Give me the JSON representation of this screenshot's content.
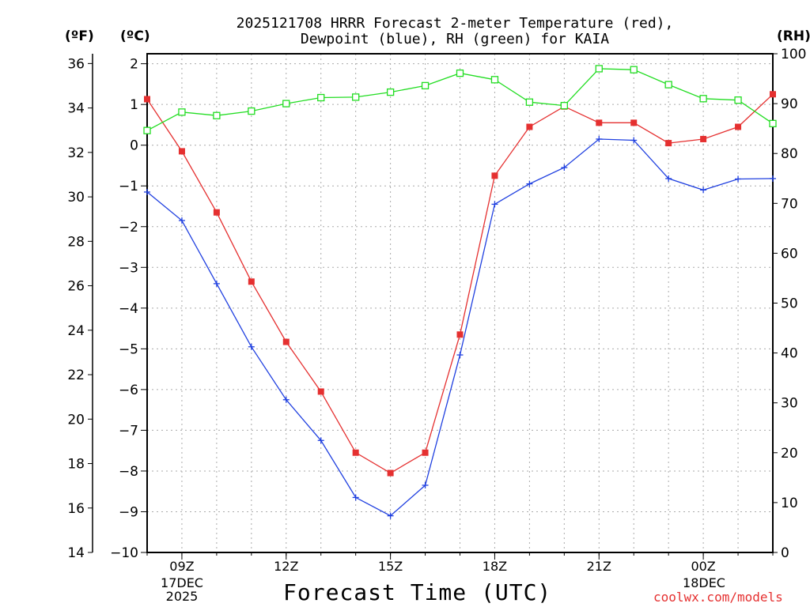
{
  "chart_data": {
    "type": "line",
    "title_line1": "2025121708 HRRR Forecast 2-meter Temperature (red),",
    "title_line2": "Dewpoint (blue), RH (green) for KAIA",
    "xlabel": "Forecast Time (UTC)",
    "credit": "coolwx.com/models",
    "units": {
      "fahrenheit": "(ºF)",
      "celsius": "(ºC)",
      "rh": "(RH)"
    },
    "x_hours": [
      8,
      9,
      10,
      11,
      12,
      13,
      14,
      15,
      16,
      17,
      18,
      19,
      20,
      21,
      22,
      23,
      24,
      25,
      26
    ],
    "x_ticks": [
      {
        "hour": 9,
        "label": "09Z"
      },
      {
        "hour": 12,
        "label": "12Z"
      },
      {
        "hour": 15,
        "label": "15Z"
      },
      {
        "hour": 18,
        "label": "18Z"
      },
      {
        "hour": 21,
        "label": "21Z"
      },
      {
        "hour": 24,
        "label": "00Z"
      }
    ],
    "date_labels": [
      {
        "hour": 9,
        "line1": "17DEC",
        "line2": "2025"
      },
      {
        "hour": 24,
        "line1": "18DEC",
        "line2": ""
      }
    ],
    "celsius_axis": {
      "range": [
        -10,
        2
      ],
      "ticks": [
        2,
        1,
        0,
        -1,
        -2,
        -3,
        -4,
        -5,
        -6,
        -7,
        -8,
        -9,
        -10
      ]
    },
    "fahrenheit_axis": {
      "range": [
        14,
        36
      ],
      "ticks": [
        36,
        34,
        32,
        30,
        28,
        26,
        24,
        22,
        20,
        18,
        16,
        14
      ]
    },
    "rh_axis": {
      "range": [
        0,
        100
      ],
      "ticks": [
        100,
        90,
        80,
        70,
        60,
        50,
        40,
        30,
        20,
        10,
        0
      ]
    },
    "series": [
      {
        "name": "Temperature",
        "color": "#e53030",
        "axis": "celsius",
        "marker": "filled-square",
        "values": [
          1.13,
          -0.15,
          -1.65,
          -3.35,
          -4.83,
          -6.05,
          -7.55,
          -8.05,
          -7.55,
          -4.65,
          -0.75,
          0.45,
          0.95,
          0.55,
          0.55,
          0.05,
          0.15,
          0.45,
          1.25
        ]
      },
      {
        "name": "Dewpoint",
        "color": "#2040e0",
        "axis": "celsius",
        "marker": "plus",
        "values": [
          -1.15,
          -1.85,
          -3.4,
          -4.95,
          -6.25,
          -7.25,
          -8.65,
          -9.1,
          -8.35,
          -5.15,
          -1.45,
          -0.95,
          -0.55,
          0.15,
          0.12,
          -0.82,
          -1.1,
          -0.83,
          -0.82
        ]
      },
      {
        "name": "RH",
        "color": "#22dd22",
        "axis": "rh",
        "marker": "open-square",
        "values": [
          84.6,
          88.3,
          87.6,
          88.5,
          90.0,
          91.2,
          91.3,
          92.3,
          93.6,
          96.1,
          94.8,
          90.3,
          89.6,
          97.0,
          96.8,
          93.8,
          91.0,
          90.7,
          86.0
        ]
      }
    ]
  }
}
